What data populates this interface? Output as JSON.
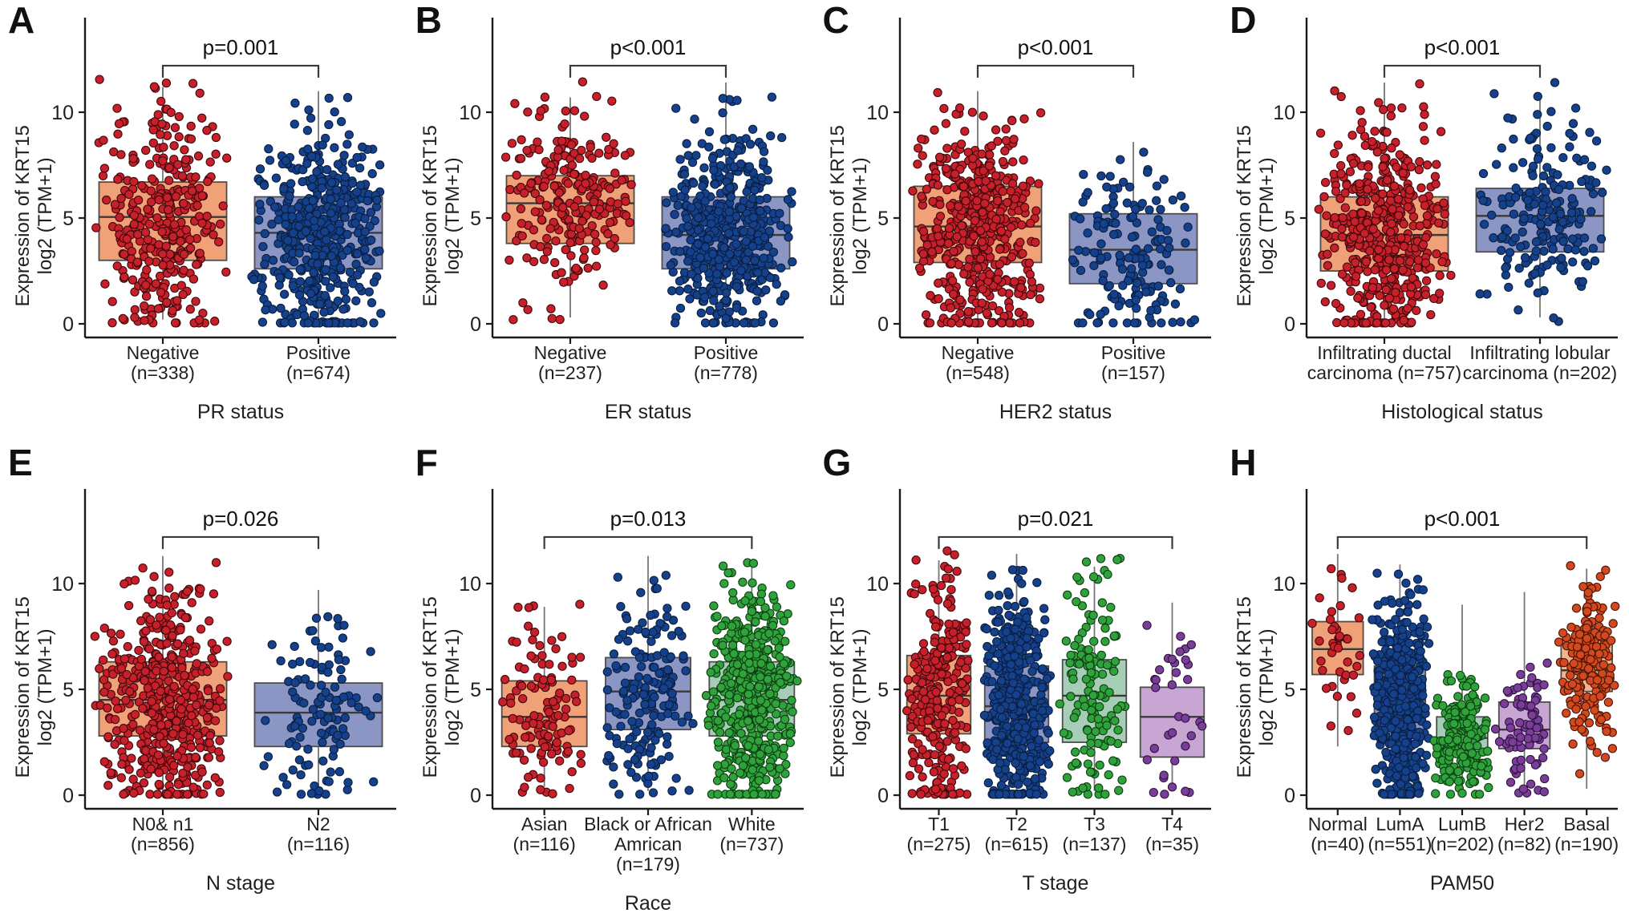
{
  "figure": {
    "title": "KRT15 expression boxplots by clinicopathological variables",
    "y_axis_label_lines": [
      "Expression of KRT15",
      "log2 (TPM+1)"
    ],
    "colors": {
      "red": {
        "box": "#F0A177",
        "point": "#C8202A",
        "edge": "#40090c"
      },
      "blue": {
        "box": "#8C96C5",
        "point": "#15418C",
        "edge": "#0a1f40"
      },
      "green": {
        "box": "#A6CDB6",
        "point": "#2FA23B",
        "edge": "#0d3f12"
      },
      "purple": {
        "box": "#C7A6D3",
        "point": "#7A3E99",
        "edge": "#2e1440"
      },
      "salmon": {
        "box": "#F2B58F",
        "point": "#D4481F",
        "edge": "#4a1505"
      },
      "axis": "#1a1a1a",
      "box_border": "#4d4d4d",
      "median_line": "#3a3a3a",
      "whisker": "#777777",
      "bracket": "#3a3a3a",
      "text": "#1f1f1f"
    }
  },
  "chart_data": [
    {
      "panel_letter": "A",
      "type": "box",
      "p_label": "p=0.001",
      "xlabel": "PR status",
      "ylabel": "Expression of KRT15 log2 (TPM+1)",
      "yticks": [
        0,
        5,
        10
      ],
      "ylim": [
        0,
        13.5
      ],
      "groups": [
        {
          "label_lines": [
            "Negative",
            "(n=338)"
          ],
          "n": 338,
          "palette": "red",
          "whisker_low": 0.2,
          "q1": 3.0,
          "median": 5.05,
          "q3": 6.7,
          "whisker_high": 11.2
        },
        {
          "label_lines": [
            "Positive",
            "(n=674)"
          ],
          "n": 674,
          "palette": "blue",
          "whisker_low": 0.15,
          "q1": 2.6,
          "median": 4.3,
          "q3": 6.0,
          "whisker_high": 11.0
        }
      ]
    },
    {
      "panel_letter": "B",
      "type": "box",
      "p_label": "p<0.001",
      "xlabel": "ER status",
      "ylabel": "Expression of KRT15 log2 (TPM+1)",
      "yticks": [
        0,
        5,
        10
      ],
      "ylim": [
        0,
        13.5
      ],
      "groups": [
        {
          "label_lines": [
            "Negative",
            "(n=237)"
          ],
          "n": 237,
          "palette": "red",
          "whisker_low": 0.3,
          "q1": 3.8,
          "median": 5.7,
          "q3": 7.0,
          "whisker_high": 10.7
        },
        {
          "label_lines": [
            "Positive",
            "(n=778)"
          ],
          "n": 778,
          "palette": "blue",
          "whisker_low": 0.1,
          "q1": 2.6,
          "median": 4.2,
          "q3": 6.0,
          "whisker_high": 11.4
        }
      ]
    },
    {
      "panel_letter": "C",
      "type": "box",
      "p_label": "p<0.001",
      "xlabel": "HER2 status",
      "ylabel": "Expression of KRT15 log2 (TPM+1)",
      "yticks": [
        0,
        5,
        10
      ],
      "ylim": [
        0,
        13.5
      ],
      "groups": [
        {
          "label_lines": [
            "Negative",
            "(n=548)"
          ],
          "n": 548,
          "palette": "red",
          "whisker_low": 0.1,
          "q1": 2.9,
          "median": 4.6,
          "q3": 6.5,
          "whisker_high": 11.0
        },
        {
          "label_lines": [
            "Positive",
            "(n=157)"
          ],
          "n": 157,
          "palette": "blue",
          "whisker_low": 0.2,
          "q1": 1.9,
          "median": 3.5,
          "q3": 5.2,
          "whisker_high": 8.6
        }
      ]
    },
    {
      "panel_letter": "D",
      "type": "box",
      "p_label": "p<0.001",
      "xlabel": "Histological status",
      "ylabel": "Expression of KRT15 log2 (TPM+1)",
      "yticks": [
        0,
        5,
        10
      ],
      "ylim": [
        0,
        13.5
      ],
      "groups": [
        {
          "label_lines": [
            "Infiltrating ductal",
            "carcinoma (n=757)"
          ],
          "n": 757,
          "palette": "red",
          "whisker_low": 0.1,
          "q1": 2.5,
          "median": 4.2,
          "q3": 6.0,
          "whisker_high": 11.4
        },
        {
          "label_lines": [
            "Infiltrating lobular",
            "carcinoma (n=202)"
          ],
          "n": 202,
          "palette": "blue",
          "whisker_low": 0.3,
          "q1": 3.4,
          "median": 5.1,
          "q3": 6.4,
          "whisker_high": 10.8
        }
      ]
    },
    {
      "panel_letter": "E",
      "type": "box",
      "p_label": "p=0.026",
      "xlabel": "N stage",
      "ylabel": "Expression of KRT15 log2 (TPM+1)",
      "yticks": [
        0,
        5,
        10
      ],
      "ylim": [
        0,
        13.5
      ],
      "groups": [
        {
          "label_lines": [
            "N0& n1",
            "(n=856)"
          ],
          "n": 856,
          "palette": "red",
          "whisker_low": 0.1,
          "q1": 2.8,
          "median": 4.5,
          "q3": 6.3,
          "whisker_high": 11.3
        },
        {
          "label_lines": [
            "N2",
            "(n=116)"
          ],
          "n": 116,
          "palette": "blue",
          "whisker_low": 0.3,
          "q1": 2.3,
          "median": 3.9,
          "q3": 5.3,
          "whisker_high": 9.7
        }
      ]
    },
    {
      "panel_letter": "F",
      "type": "box",
      "p_label": "p=0.013",
      "xlabel": "Race",
      "ylabel": "Expression of KRT15 log2 (TPM+1)",
      "yticks": [
        0,
        5,
        10
      ],
      "ylim": [
        0,
        13.5
      ],
      "groups": [
        {
          "label_lines": [
            "Asian",
            "(n=116)"
          ],
          "n": 116,
          "palette": "red",
          "whisker_low": 0.4,
          "q1": 2.3,
          "median": 3.7,
          "q3": 5.4,
          "whisker_high": 8.9
        },
        {
          "label_lines": [
            "Black or African",
            "Amrican",
            "(n=179)"
          ],
          "n": 179,
          "palette": "blue",
          "whisker_low": 0.2,
          "q1": 3.1,
          "median": 4.9,
          "q3": 6.5,
          "whisker_high": 11.3
        },
        {
          "label_lines": [
            "White",
            "(n=737)"
          ],
          "n": 737,
          "palette": "green",
          "whisker_low": 0.05,
          "q1": 2.8,
          "median": 4.5,
          "q3": 6.3,
          "whisker_high": 10.9
        }
      ]
    },
    {
      "panel_letter": "G",
      "type": "box",
      "p_label": "p=0.021",
      "xlabel": "T stage",
      "ylabel": "Expression of KRT15 log2 (TPM+1)",
      "yticks": [
        0,
        5,
        10
      ],
      "ylim": [
        0,
        13.5
      ],
      "groups": [
        {
          "label_lines": [
            "T1",
            "(n=275)"
          ],
          "n": 275,
          "palette": "red",
          "whisker_low": 0.3,
          "q1": 2.9,
          "median": 4.7,
          "q3": 6.6,
          "whisker_high": 11.1
        },
        {
          "label_lines": [
            "T2",
            "(n=615)"
          ],
          "n": 615,
          "palette": "blue",
          "whisker_low": 0.1,
          "q1": 2.5,
          "median": 4.2,
          "q3": 6.1,
          "whisker_high": 11.4
        },
        {
          "label_lines": [
            "T3",
            "(n=137)"
          ],
          "n": 137,
          "palette": "green",
          "whisker_low": 0.2,
          "q1": 2.5,
          "median": 4.7,
          "q3": 6.4,
          "whisker_high": 10.8
        },
        {
          "label_lines": [
            "T4",
            "(n=35)"
          ],
          "n": 35,
          "palette": "purple",
          "whisker_low": 0.2,
          "q1": 1.8,
          "median": 3.7,
          "q3": 5.1,
          "whisker_high": 9.1
        }
      ]
    },
    {
      "panel_letter": "H",
      "type": "box",
      "p_label": "p<0.001",
      "xlabel": "PAM50",
      "ylabel": "Expression of KRT15 log2 (TPM+1)",
      "yticks": [
        0,
        5,
        10
      ],
      "ylim": [
        0,
        13.5
      ],
      "groups": [
        {
          "label_lines": [
            "Normal",
            "(n=40)"
          ],
          "n": 40,
          "palette": "red",
          "whisker_low": 2.3,
          "q1": 5.7,
          "median": 6.9,
          "q3": 8.2,
          "whisker_high": 11.4
        },
        {
          "label_lines": [
            "LumA",
            "(n=551)"
          ],
          "n": 551,
          "palette": "blue",
          "whisker_low": 0.1,
          "q1": 2.9,
          "median": 4.5,
          "q3": 6.1,
          "whisker_high": 10.9
        },
        {
          "label_lines": [
            "LumB",
            "(n=202)"
          ],
          "n": 202,
          "palette": "green",
          "whisker_low": 0.1,
          "q1": 1.9,
          "median": 2.7,
          "q3": 3.7,
          "whisker_high": 9.0
        },
        {
          "label_lines": [
            "Her2",
            "(n=82)"
          ],
          "n": 82,
          "palette": "purple",
          "whisker_low": 0.3,
          "q1": 2.2,
          "median": 3.1,
          "q3": 4.4,
          "whisker_high": 9.6
        },
        {
          "label_lines": [
            "Basal",
            "(n=190)"
          ],
          "n": 190,
          "palette": "salmon",
          "whisker_low": 0.3,
          "q1": 4.9,
          "median": 5.9,
          "q3": 7.3,
          "whisker_high": 10.7
        }
      ]
    }
  ]
}
